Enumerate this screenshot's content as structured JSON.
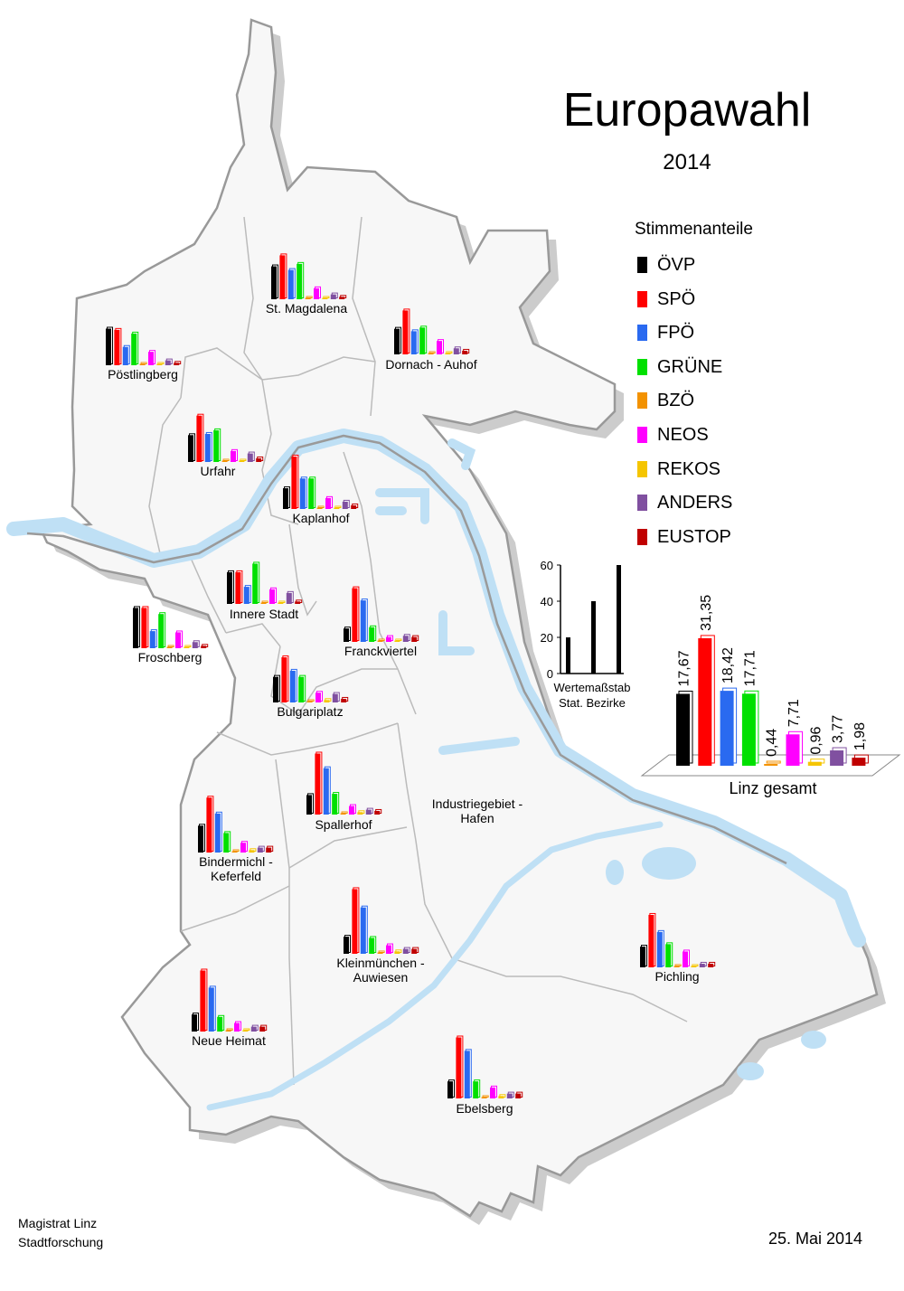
{
  "title": "Europawahl",
  "year": "2014",
  "legend": {
    "title": "Stimmenanteile",
    "items": [
      {
        "label": "ÖVP",
        "color": "#000000"
      },
      {
        "label": "SPÖ",
        "color": "#ff0000"
      },
      {
        "label": "FPÖ",
        "color": "#2a6af0"
      },
      {
        "label": "GRÜNE",
        "color": "#00e000"
      },
      {
        "label": "BZÖ",
        "color": "#f39200"
      },
      {
        "label": "NEOS",
        "color": "#ff00ff"
      },
      {
        "label": "REKOS",
        "color": "#f5c500"
      },
      {
        "label": "ANDERS",
        "color": "#8050a0"
      },
      {
        "label": "EUSTOP",
        "color": "#c00000"
      }
    ]
  },
  "scale": {
    "ticks": [
      "60",
      "40",
      "20",
      "0"
    ],
    "bars": [
      20,
      40,
      60
    ],
    "label_line1": "Wertemaßstab",
    "label_line2": "Stat. Bezirke"
  },
  "linz_total": {
    "label": "Linz gesamt",
    "values": [
      17.67,
      31.35,
      18.42,
      17.71,
      0.44,
      7.71,
      0.96,
      3.77,
      1.98
    ],
    "value_labels": [
      "17,67",
      "31,35",
      "18,42",
      "17,71",
      "0,44",
      "7,71",
      "0,96",
      "3,77",
      "1,98"
    ]
  },
  "districts": [
    {
      "name": "St. Magdalena",
      "values": [
        27,
        36,
        24,
        29,
        1,
        9,
        1,
        4,
        2
      ]
    },
    {
      "name": "Dornach - Auhof",
      "values": [
        21,
        36,
        19,
        22,
        1,
        11,
        1,
        5,
        3
      ]
    },
    {
      "name": "Pöstlingberg",
      "values": [
        30,
        29,
        15,
        26,
        1,
        11,
        1,
        4,
        2
      ]
    },
    {
      "name": "Urfahr",
      "values": [
        22,
        38,
        23,
        26,
        1,
        9,
        1,
        7,
        3
      ]
    },
    {
      "name": "Kaplanhof",
      "values": [
        17,
        43,
        25,
        25,
        1,
        9,
        1,
        6,
        3
      ]
    },
    {
      "name": "Innere Stadt",
      "values": [
        26,
        26,
        14,
        33,
        1,
        12,
        1,
        9,
        2
      ]
    },
    {
      "name": "Franckviertel",
      "values": [
        11,
        44,
        34,
        12,
        1,
        4,
        1,
        5,
        4
      ]
    },
    {
      "name": "Froschberg",
      "values": [
        33,
        33,
        14,
        28,
        1,
        13,
        1,
        5,
        2
      ]
    },
    {
      "name": "Bulgariplatz",
      "values": [
        21,
        37,
        26,
        21,
        1,
        8,
        2,
        7,
        3
      ]
    },
    {
      "name": "Spallerhof",
      "values": [
        16,
        50,
        38,
        17,
        1,
        7,
        2,
        4,
        3
      ]
    },
    {
      "name": "Bindermichl -",
      "name2": "Keferfeld",
      "values": [
        22,
        45,
        32,
        16,
        1,
        8,
        2,
        4,
        4
      ]
    },
    {
      "name": "Industriegebiet -",
      "name2": "Hafen",
      "values": []
    },
    {
      "name": "Kleinmünchen -",
      "name2": "Auwiesen",
      "values": [
        14,
        53,
        38,
        13,
        1,
        7,
        2,
        4,
        4
      ]
    },
    {
      "name": "Pichling",
      "values": [
        17,
        43,
        29,
        19,
        1,
        13,
        1,
        3,
        3
      ]
    },
    {
      "name": "Neue Heimat",
      "values": [
        14,
        50,
        36,
        12,
        1,
        7,
        1,
        4,
        4
      ]
    },
    {
      "name": "Ebelsberg",
      "values": [
        14,
        50,
        39,
        14,
        1,
        9,
        2,
        4,
        4
      ]
    }
  ],
  "footer": {
    "line1": "Magistrat Linz",
    "line2": "Stadtforschung",
    "date": "25. Mai 2014"
  }
}
